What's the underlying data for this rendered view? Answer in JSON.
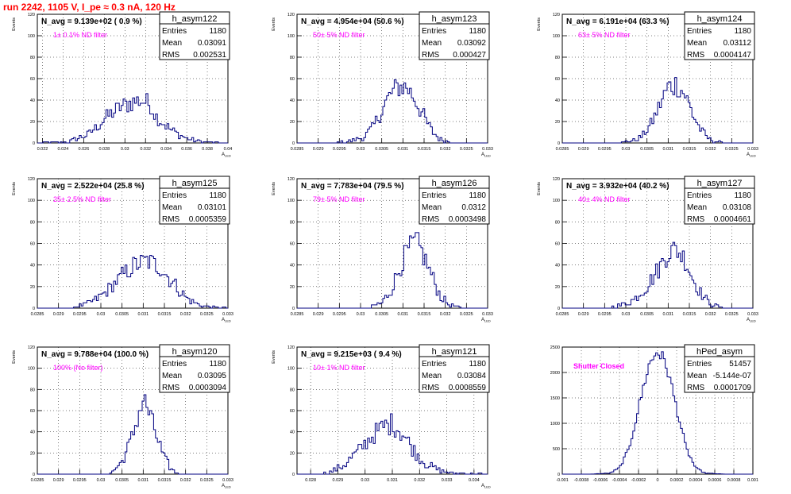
{
  "page": {
    "title": "run 2242,  1105 V, I_pe ≈ 0.3 nA, 120 Hz",
    "title_color": "#ff0000",
    "label_color": "#ff00ff",
    "line_color": "#000080"
  },
  "chart_data": [
    {
      "type": "histogram",
      "name": "h_asym122",
      "navg": "N_avg = 9.139e+02 ( 0.9 %)",
      "label": "1± 0.1% ND filter",
      "stats": {
        "Entries": "1180",
        "Mean": "0.03091",
        "RMS": "0.002531"
      },
      "ylabel": "Events",
      "xlabel": "A",
      "xlabel_sub": "LED",
      "xlim": [
        0.0215,
        0.04
      ],
      "ylim": [
        0,
        120
      ],
      "xticks": [
        "0.022",
        "0.024",
        "0.026",
        "0.028",
        "0.03",
        "0.032",
        "0.034",
        "0.036",
        "0.038",
        "0.04"
      ],
      "yticks": [
        "0",
        "20",
        "40",
        "60",
        "80",
        "100",
        "120"
      ],
      "profile": [
        [
          0.0215,
          0
        ],
        [
          0.0245,
          1
        ],
        [
          0.0265,
          8
        ],
        [
          0.028,
          22
        ],
        [
          0.0295,
          33
        ],
        [
          0.0305,
          37
        ],
        [
          0.0315,
          40
        ],
        [
          0.0325,
          36
        ],
        [
          0.033,
          25
        ],
        [
          0.0345,
          12
        ],
        [
          0.036,
          4
        ],
        [
          0.0375,
          1
        ],
        [
          0.04,
          0
        ]
      ]
    },
    {
      "type": "histogram",
      "name": "h_asym123",
      "navg": "N_avg = 4.954e+04 (50.6 %)",
      "label": "50± 5% ND filter",
      "stats": {
        "Entries": "1180",
        "Mean": "0.03092",
        "RMS": "0.000427"
      },
      "ylabel": "Events",
      "xlabel": "A",
      "xlabel_sub": "LED",
      "xlim": [
        0.0285,
        0.033
      ],
      "ylim": [
        0,
        120
      ],
      "xticks": [
        "0.0285",
        "0.029",
        "0.0295",
        "0.03",
        "0.0305",
        "0.031",
        "0.0315",
        "0.032",
        "0.0325",
        "0.033"
      ],
      "yticks": [
        "0",
        "20",
        "40",
        "60",
        "80",
        "100",
        "120"
      ],
      "profile": [
        [
          0.0285,
          0
        ],
        [
          0.0294,
          0
        ],
        [
          0.0298,
          2
        ],
        [
          0.0301,
          6
        ],
        [
          0.0303,
          15
        ],
        [
          0.0305,
          30
        ],
        [
          0.0307,
          45
        ],
        [
          0.0309,
          53
        ],
        [
          0.0311,
          52
        ],
        [
          0.0313,
          40
        ],
        [
          0.0315,
          24
        ],
        [
          0.0317,
          10
        ],
        [
          0.0319,
          3
        ],
        [
          0.0322,
          0
        ],
        [
          0.033,
          0
        ]
      ]
    },
    {
      "type": "histogram",
      "name": "h_asym124",
      "navg": "N_avg = 6.191e+04 (63.3 %)",
      "label": "63± 5% ND filter",
      "stats": {
        "Entries": "1180",
        "Mean": "0.03112",
        "RMS": "0.0004147"
      },
      "ylabel": "Events",
      "xlabel": "A",
      "xlabel_sub": "LED",
      "xlim": [
        0.0285,
        0.033
      ],
      "ylim": [
        0,
        120
      ],
      "xticks": [
        "0.0285",
        "0.029",
        "0.0295",
        "0.03",
        "0.0305",
        "0.031",
        "0.0315",
        "0.032",
        "0.0325",
        "0.033"
      ],
      "yticks": [
        "0",
        "20",
        "40",
        "60",
        "80",
        "100",
        "120"
      ],
      "profile": [
        [
          0.0285,
          0
        ],
        [
          0.0298,
          0
        ],
        [
          0.0302,
          2
        ],
        [
          0.0304,
          7
        ],
        [
          0.0306,
          18
        ],
        [
          0.0308,
          35
        ],
        [
          0.031,
          52
        ],
        [
          0.0312,
          55
        ],
        [
          0.0314,
          45
        ],
        [
          0.0316,
          25
        ],
        [
          0.0318,
          10
        ],
        [
          0.032,
          3
        ],
        [
          0.0323,
          0
        ],
        [
          0.033,
          0
        ]
      ]
    },
    {
      "type": "histogram",
      "name": "h_asym125",
      "navg": "N_avg = 2.522e+04 (25.8 %)",
      "label": "25± 2.5% ND filter",
      "stats": {
        "Entries": "1180",
        "Mean": "0.03101",
        "RMS": "0.0005359"
      },
      "ylabel": "Events",
      "xlabel": "A",
      "xlabel_sub": "LED",
      "xlim": [
        0.0285,
        0.033
      ],
      "ylim": [
        0,
        120
      ],
      "xticks": [
        "0.0285",
        "0.029",
        "0.0295",
        "0.03",
        "0.0305",
        "0.031",
        "0.0315",
        "0.032",
        "0.0325",
        "0.033"
      ],
      "yticks": [
        "0",
        "20",
        "40",
        "60",
        "80",
        "100",
        "120"
      ],
      "profile": [
        [
          0.0285,
          0
        ],
        [
          0.0293,
          0
        ],
        [
          0.0296,
          3
        ],
        [
          0.0299,
          8
        ],
        [
          0.0302,
          18
        ],
        [
          0.0305,
          30
        ],
        [
          0.0308,
          40
        ],
        [
          0.0311,
          44
        ],
        [
          0.0314,
          38
        ],
        [
          0.0317,
          24
        ],
        [
          0.032,
          10
        ],
        [
          0.0323,
          3
        ],
        [
          0.0326,
          1
        ],
        [
          0.033,
          0
        ]
      ]
    },
    {
      "type": "histogram",
      "name": "h_asym126",
      "navg": "N_avg = 7.783e+04 (79.5 %)",
      "label": "79± 5% ND filter",
      "stats": {
        "Entries": "1180",
        "Mean": "0.0312",
        "RMS": "0.0003498"
      },
      "ylabel": "Events",
      "xlabel": "A",
      "xlabel_sub": "LED",
      "xlim": [
        0.0285,
        0.033
      ],
      "ylim": [
        0,
        120
      ],
      "xticks": [
        "0.0285",
        "0.029",
        "0.0295",
        "0.03",
        "0.0305",
        "0.031",
        "0.0315",
        "0.032",
        "0.0325",
        "0.033"
      ],
      "yticks": [
        "0",
        "20",
        "40",
        "60",
        "80",
        "100",
        "120"
      ],
      "profile": [
        [
          0.0285,
          0
        ],
        [
          0.0302,
          0
        ],
        [
          0.0305,
          5
        ],
        [
          0.0307,
          15
        ],
        [
          0.0309,
          35
        ],
        [
          0.0311,
          52
        ],
        [
          0.0313,
          62
        ],
        [
          0.0315,
          48
        ],
        [
          0.0317,
          28
        ],
        [
          0.0319,
          10
        ],
        [
          0.0321,
          3
        ],
        [
          0.0324,
          0
        ],
        [
          0.033,
          0
        ]
      ]
    },
    {
      "type": "histogram",
      "name": "h_asym127",
      "navg": "N_avg = 3.932e+04 (40.2 %)",
      "label": "40± 4% ND filter",
      "stats": {
        "Entries": "1180",
        "Mean": "0.03108",
        "RMS": "0.0004661"
      },
      "ylabel": "Events",
      "xlabel": "A",
      "xlabel_sub": "LED",
      "xlim": [
        0.0285,
        0.033
      ],
      "ylim": [
        0,
        120
      ],
      "xticks": [
        "0.0285",
        "0.029",
        "0.0295",
        "0.03",
        "0.0305",
        "0.031",
        "0.0315",
        "0.032",
        "0.0325",
        "0.033"
      ],
      "yticks": [
        "0",
        "20",
        "40",
        "60",
        "80",
        "100",
        "120"
      ],
      "profile": [
        [
          0.0285,
          0
        ],
        [
          0.0296,
          0
        ],
        [
          0.0299,
          3
        ],
        [
          0.0302,
          8
        ],
        [
          0.0305,
          20
        ],
        [
          0.0308,
          38
        ],
        [
          0.031,
          52
        ],
        [
          0.0312,
          55
        ],
        [
          0.0314,
          45
        ],
        [
          0.0316,
          26
        ],
        [
          0.0318,
          12
        ],
        [
          0.032,
          4
        ],
        [
          0.0323,
          0
        ],
        [
          0.033,
          0
        ]
      ]
    },
    {
      "type": "histogram",
      "name": "h_asym120",
      "navg": "N_avg = 9.788e+04 (100.0 %)",
      "label": "100% (No filter)",
      "stats": {
        "Entries": "1180",
        "Mean": "0.03095",
        "RMS": "0.0003094"
      },
      "ylabel": "Events",
      "xlabel": "A",
      "xlabel_sub": "LED",
      "xlim": [
        0.0285,
        0.033
      ],
      "ylim": [
        0,
        120
      ],
      "xticks": [
        "0.0285",
        "0.029",
        "0.0295",
        "0.03",
        "0.0305",
        "0.031",
        "0.0315",
        "0.032",
        "0.0325",
        "0.033"
      ],
      "yticks": [
        "0",
        "20",
        "40",
        "60",
        "80",
        "100",
        "120"
      ],
      "profile": [
        [
          0.0285,
          0
        ],
        [
          0.0301,
          0
        ],
        [
          0.0303,
          3
        ],
        [
          0.0305,
          12
        ],
        [
          0.0307,
          30
        ],
        [
          0.0309,
          58
        ],
        [
          0.031,
          70
        ],
        [
          0.0311,
          62
        ],
        [
          0.0313,
          38
        ],
        [
          0.0315,
          14
        ],
        [
          0.0317,
          3
        ],
        [
          0.0319,
          0
        ],
        [
          0.033,
          0
        ]
      ]
    },
    {
      "type": "histogram",
      "name": "h_asym121",
      "navg": "N_avg = 9.215e+03 ( 9.4 %)",
      "label": "10± 1% ND filter",
      "stats": {
        "Entries": "1180",
        "Mean": "0.03084",
        "RMS": "0.0008559"
      },
      "ylabel": "Events",
      "xlabel": "A",
      "xlabel_sub": "LED",
      "xlim": [
        0.0275,
        0.0345
      ],
      "ylim": [
        0,
        120
      ],
      "xticks": [
        "0.028",
        "0.029",
        "0.03",
        "0.031",
        "0.032",
        "0.033",
        "0.034"
      ],
      "yticks": [
        "0",
        "20",
        "40",
        "60",
        "80",
        "100",
        "120"
      ],
      "profile": [
        [
          0.0275,
          0
        ],
        [
          0.0283,
          0
        ],
        [
          0.0287,
          2
        ],
        [
          0.0292,
          8
        ],
        [
          0.0297,
          20
        ],
        [
          0.0302,
          35
        ],
        [
          0.0307,
          45
        ],
        [
          0.031,
          48
        ],
        [
          0.0314,
          38
        ],
        [
          0.0318,
          22
        ],
        [
          0.0322,
          10
        ],
        [
          0.0327,
          4
        ],
        [
          0.0332,
          1
        ],
        [
          0.0345,
          0
        ]
      ]
    },
    {
      "type": "histogram",
      "name": "hPed_asym",
      "navg": "",
      "label": "Shutter Closed",
      "stats": {
        "Entries": "51457",
        "Mean": "-5.144e-07",
        "RMS": "0.0001709"
      },
      "ylabel": "",
      "xlabel": "",
      "xlabel_sub": "",
      "xlim": [
        -0.001,
        0.001
      ],
      "ylim": [
        0,
        2500
      ],
      "xticks": [
        "-0.001",
        "-0.0008",
        "-0.0006",
        "-0.0004",
        "-0.0002",
        "0",
        "0.0002",
        "0.0004",
        "0.0006",
        "0.0008",
        "0.001"
      ],
      "yticks": [
        "0",
        "500",
        "1000",
        "1500",
        "2000",
        "2500"
      ],
      "profile": [
        [
          -0.001,
          0
        ],
        [
          -0.0007,
          0
        ],
        [
          -0.0005,
          20
        ],
        [
          -0.0004,
          120
        ],
        [
          -0.0003,
          500
        ],
        [
          -0.0002,
          1300
        ],
        [
          -0.0001,
          2100
        ],
        [
          0,
          2450
        ],
        [
          0.0001,
          2100
        ],
        [
          0.0002,
          1300
        ],
        [
          0.0003,
          500
        ],
        [
          0.0004,
          120
        ],
        [
          0.0005,
          20
        ],
        [
          0.0007,
          0
        ],
        [
          0.001,
          0
        ]
      ]
    }
  ]
}
